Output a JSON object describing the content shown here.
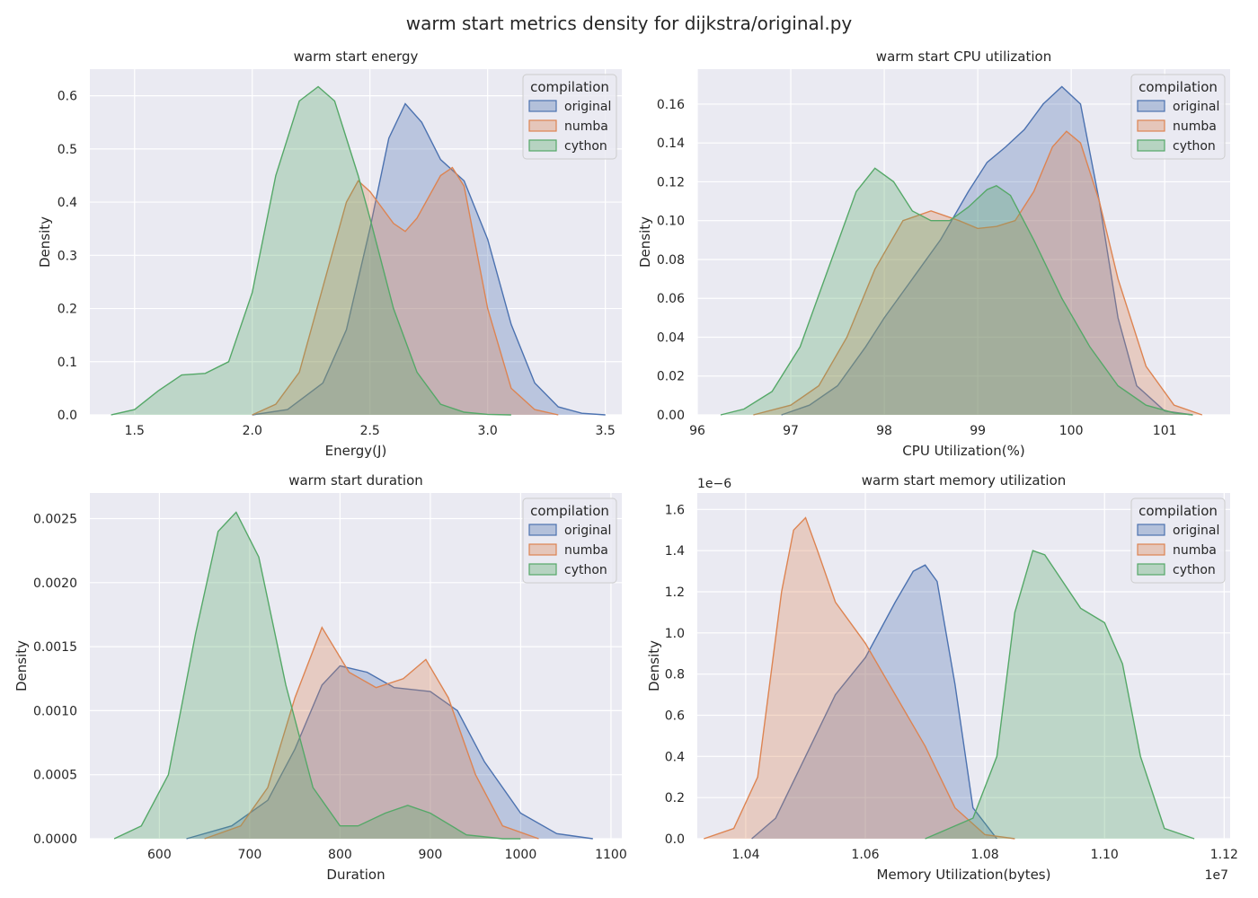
{
  "suptitle": "warm start metrics density for dijkstra/original.py",
  "colors": {
    "original": "#4c72b0",
    "numba": "#dd8452",
    "cython": "#55a868",
    "background": "#eaeaf2",
    "grid": "#ffffff"
  },
  "chart_data": [
    {
      "type": "area",
      "title": "warm start energy",
      "xlabel": "Energy(J)",
      "ylabel": "Density",
      "xlim": [
        1.31,
        3.57
      ],
      "ylim": [
        0,
        0.65
      ],
      "xticks": [
        "1.5",
        "2.0",
        "2.5",
        "3.0",
        "3.5"
      ],
      "yticks": [
        "0.0",
        "0.1",
        "0.2",
        "0.3",
        "0.4",
        "0.5",
        "0.6"
      ],
      "y_exponent": "",
      "grid": true,
      "legend": {
        "title": "compilation",
        "position": "top-right",
        "entries": [
          "original",
          "numba",
          "cython"
        ]
      },
      "series": [
        {
          "name": "original",
          "x": [
            2.0,
            2.15,
            2.3,
            2.4,
            2.5,
            2.58,
            2.65,
            2.72,
            2.8,
            2.9,
            3.0,
            3.1,
            3.2,
            3.3,
            3.4,
            3.5
          ],
          "y": [
            0.0,
            0.01,
            0.06,
            0.16,
            0.35,
            0.52,
            0.585,
            0.55,
            0.48,
            0.44,
            0.33,
            0.17,
            0.06,
            0.015,
            0.003,
            0.0
          ]
        },
        {
          "name": "numba",
          "x": [
            2.0,
            2.1,
            2.2,
            2.3,
            2.4,
            2.45,
            2.5,
            2.6,
            2.65,
            2.7,
            2.8,
            2.85,
            2.9,
            3.0,
            3.1,
            3.2,
            3.3
          ],
          "y": [
            0.0,
            0.02,
            0.08,
            0.24,
            0.4,
            0.44,
            0.42,
            0.36,
            0.345,
            0.37,
            0.45,
            0.465,
            0.43,
            0.2,
            0.05,
            0.01,
            0.0
          ]
        },
        {
          "name": "cython",
          "x": [
            1.4,
            1.5,
            1.6,
            1.7,
            1.8,
            1.9,
            2.0,
            2.1,
            2.2,
            2.28,
            2.35,
            2.45,
            2.5,
            2.6,
            2.7,
            2.8,
            2.9,
            3.0,
            3.1
          ],
          "y": [
            0.0,
            0.01,
            0.045,
            0.075,
            0.078,
            0.1,
            0.23,
            0.45,
            0.59,
            0.617,
            0.59,
            0.45,
            0.37,
            0.2,
            0.08,
            0.02,
            0.005,
            0.001,
            0.0
          ]
        }
      ]
    },
    {
      "type": "area",
      "title": "warm start CPU utilization",
      "xlabel": "CPU Utilization(%)",
      "ylabel": "Density",
      "xlim": [
        96.0,
        101.7
      ],
      "ylim": [
        0,
        0.178
      ],
      "xticks": [
        "96",
        "97",
        "98",
        "99",
        "100",
        "101"
      ],
      "yticks": [
        "0.00",
        "0.02",
        "0.04",
        "0.06",
        "0.08",
        "0.10",
        "0.12",
        "0.14",
        "0.16"
      ],
      "y_exponent": "",
      "grid": true,
      "legend": {
        "title": "compilation",
        "position": "top-right",
        "entries": [
          "original",
          "numba",
          "cython"
        ]
      },
      "series": [
        {
          "name": "original",
          "x": [
            96.9,
            97.2,
            97.5,
            97.8,
            98.0,
            98.3,
            98.6,
            98.9,
            99.1,
            99.3,
            99.5,
            99.7,
            99.9,
            100.1,
            100.3,
            100.5,
            100.7,
            101.0,
            101.3
          ],
          "y": [
            0.0,
            0.005,
            0.015,
            0.035,
            0.05,
            0.07,
            0.09,
            0.115,
            0.13,
            0.138,
            0.147,
            0.16,
            0.169,
            0.16,
            0.11,
            0.05,
            0.015,
            0.002,
            0.0
          ]
        },
        {
          "name": "numba",
          "x": [
            96.6,
            97.0,
            97.3,
            97.6,
            97.9,
            98.2,
            98.5,
            98.8,
            99.0,
            99.2,
            99.4,
            99.6,
            99.8,
            99.95,
            100.1,
            100.3,
            100.5,
            100.8,
            101.1,
            101.4
          ],
          "y": [
            0.0,
            0.005,
            0.015,
            0.04,
            0.075,
            0.1,
            0.105,
            0.1,
            0.096,
            0.097,
            0.1,
            0.115,
            0.138,
            0.146,
            0.14,
            0.11,
            0.07,
            0.025,
            0.005,
            0.0
          ]
        },
        {
          "name": "cython",
          "x": [
            96.25,
            96.5,
            96.8,
            97.1,
            97.4,
            97.7,
            97.9,
            98.1,
            98.3,
            98.5,
            98.7,
            98.9,
            99.1,
            99.2,
            99.35,
            99.6,
            99.9,
            100.2,
            100.5,
            100.8,
            101.1,
            101.3
          ],
          "y": [
            0.0,
            0.003,
            0.012,
            0.035,
            0.075,
            0.115,
            0.127,
            0.12,
            0.105,
            0.1,
            0.1,
            0.107,
            0.116,
            0.118,
            0.113,
            0.09,
            0.06,
            0.035,
            0.015,
            0.005,
            0.001,
            0.0
          ]
        }
      ]
    },
    {
      "type": "area",
      "title": "warm start duration",
      "xlabel": "Duration",
      "ylabel": "Density",
      "xlim": [
        523,
        1112
      ],
      "ylim": [
        0,
        0.0027
      ],
      "xticks": [
        "600",
        "700",
        "800",
        "900",
        "1000",
        "1100"
      ],
      "yticks": [
        "0.0000",
        "0.0005",
        "0.0010",
        "0.0015",
        "0.0020",
        "0.0025"
      ],
      "y_exponent": "",
      "grid": true,
      "legend": {
        "title": "compilation",
        "position": "top-right",
        "entries": [
          "original",
          "numba",
          "cython"
        ]
      },
      "series": [
        {
          "name": "original",
          "x": [
            630,
            680,
            720,
            750,
            780,
            800,
            830,
            860,
            900,
            930,
            960,
            1000,
            1040,
            1080
          ],
          "y": [
            0.0,
            0.0001,
            0.0003,
            0.0007,
            0.0012,
            0.00135,
            0.0013,
            0.00118,
            0.00115,
            0.001,
            0.0006,
            0.0002,
            4e-05,
            0.0
          ]
        },
        {
          "name": "numba",
          "x": [
            650,
            690,
            720,
            750,
            780,
            810,
            840,
            870,
            895,
            920,
            950,
            980,
            1020
          ],
          "y": [
            0.0,
            0.0001,
            0.0004,
            0.0011,
            0.00165,
            0.0013,
            0.00118,
            0.00125,
            0.0014,
            0.0011,
            0.0005,
            0.0001,
            0.0
          ]
        },
        {
          "name": "cython",
          "x": [
            550,
            580,
            610,
            640,
            665,
            685,
            710,
            740,
            770,
            800,
            820,
            850,
            875,
            900,
            940,
            980,
            1000
          ],
          "y": [
            0.0,
            0.0001,
            0.0005,
            0.0016,
            0.0024,
            0.00255,
            0.0022,
            0.0012,
            0.0004,
            0.0001,
            0.0001,
            0.0002,
            0.00026,
            0.0002,
            3e-05,
            0.0,
            0.0
          ]
        }
      ]
    },
    {
      "type": "area",
      "title": "warm start memory utilization",
      "xlabel": "Memory Utilization(bytes)",
      "ylabel": "Density",
      "xlim": [
        10319000,
        11210000
      ],
      "ylim": [
        0,
        1.68e-06
      ],
      "xticks": [
        "1.04",
        "1.06",
        "1.08",
        "1.10",
        "1.12"
      ],
      "xtick_values": [
        10400000,
        10600000,
        10800000,
        11000000,
        11200000
      ],
      "x_exponent": "1e7",
      "yticks": [
        "0.0",
        "0.2",
        "0.4",
        "0.6",
        "0.8",
        "1.0",
        "1.2",
        "1.4",
        "1.6"
      ],
      "y_exponent": "1e−6",
      "grid": true,
      "legend": {
        "title": "compilation",
        "position": "top-right",
        "entries": [
          "original",
          "numba",
          "cython"
        ]
      },
      "series": [
        {
          "name": "original",
          "x": [
            10410000,
            10450000,
            10500000,
            10550000,
            10600000,
            10650000,
            10680000,
            10700000,
            10720000,
            10750000,
            10780000,
            10820000
          ],
          "y": [
            0.0,
            1e-07,
            4e-07,
            7e-07,
            8.8e-07,
            1.15e-06,
            1.3e-06,
            1.33e-06,
            1.25e-06,
            7.5e-07,
            1.5e-07,
            0.0
          ]
        },
        {
          "name": "numba",
          "x": [
            10330000,
            10380000,
            10420000,
            10460000,
            10480000,
            10500000,
            10520000,
            10550000,
            10600000,
            10650000,
            10700000,
            10750000,
            10800000,
            10850000
          ],
          "y": [
            0.0,
            5e-08,
            3e-07,
            1.2e-06,
            1.5e-06,
            1.56e-06,
            1.4e-06,
            1.15e-06,
            9.5e-07,
            7e-07,
            4.5e-07,
            1.5e-07,
            2e-08,
            0.0
          ]
        },
        {
          "name": "cython",
          "x": [
            10700000,
            10780000,
            10820000,
            10850000,
            10880000,
            10900000,
            10930000,
            10960000,
            11000000,
            11030000,
            11060000,
            11100000,
            11150000
          ],
          "y": [
            0.0,
            1e-07,
            4e-07,
            1.1e-06,
            1.4e-06,
            1.38e-06,
            1.25e-06,
            1.12e-06,
            1.05e-06,
            8.5e-07,
            4e-07,
            5e-08,
            0.0
          ]
        }
      ]
    }
  ]
}
